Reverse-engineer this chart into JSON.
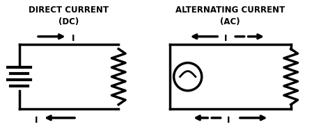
{
  "title_dc": "DIRECT CURRENT",
  "subtitle_dc": "(DC)",
  "title_ac": "ALTERNATING CURRENT",
  "subtitle_ac": "(AC)",
  "bg_color": "#ffffff",
  "line_color": "#000000",
  "line_width": 2.5,
  "fig_width": 4.52,
  "fig_height": 1.99,
  "dpi": 100
}
